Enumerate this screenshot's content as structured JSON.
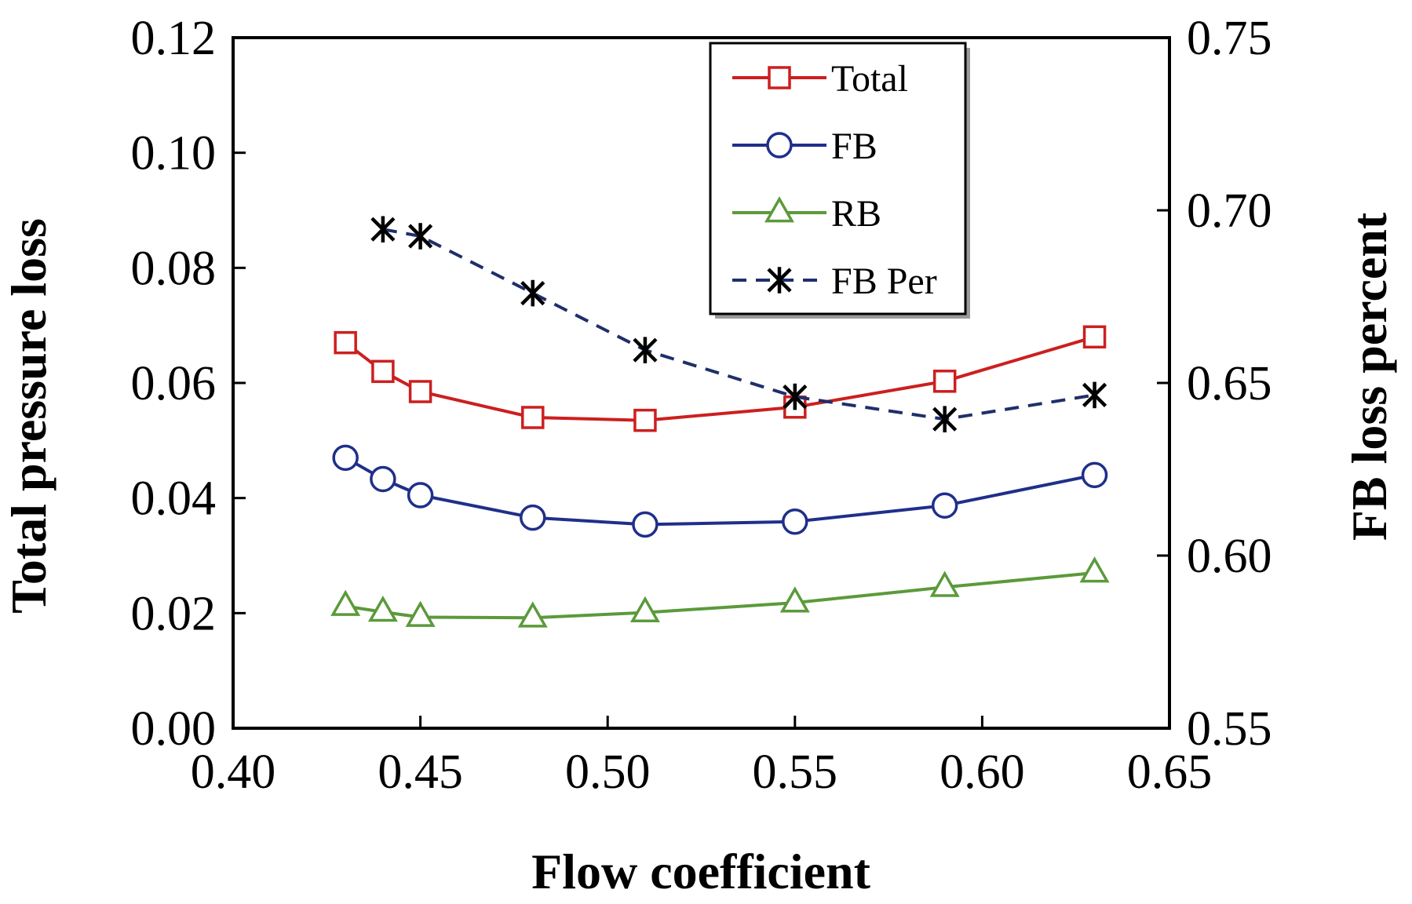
{
  "chart_data": {
    "type": "line",
    "title": "",
    "xlabel": "Flow coefficient",
    "ylabel": "Total pressure loss",
    "y2label": "FB loss percent",
    "xlim": [
      0.4,
      0.65
    ],
    "ylim": [
      0.0,
      0.12
    ],
    "y2lim": [
      0.55,
      0.75
    ],
    "x_ticks": [
      "0.40",
      "0.45",
      "0.50",
      "0.55",
      "0.60",
      "0.65"
    ],
    "x_tick_values": [
      0.4,
      0.45,
      0.5,
      0.55,
      0.6,
      0.65
    ],
    "y_ticks": [
      "0.00",
      "0.02",
      "0.04",
      "0.06",
      "0.08",
      "0.10",
      "0.12"
    ],
    "y_tick_values": [
      0.0,
      0.02,
      0.04,
      0.06,
      0.08,
      0.1,
      0.12
    ],
    "y2_ticks": [
      "0.55",
      "0.60",
      "0.65",
      "0.70",
      "0.75"
    ],
    "y2_tick_values": [
      0.55,
      0.6,
      0.65,
      0.7,
      0.75
    ],
    "grid": false,
    "legend_position": "top-right",
    "series": [
      {
        "name": "Total",
        "axis": "left",
        "color": "#cc1f1f",
        "marker": "square",
        "line": "solid",
        "x": [
          0.43,
          0.44,
          0.45,
          0.48,
          0.51,
          0.55,
          0.59,
          0.63
        ],
        "values": [
          0.067,
          0.062,
          0.0585,
          0.054,
          0.0535,
          0.0558,
          0.0603,
          0.068
        ]
      },
      {
        "name": "FB",
        "axis": "left",
        "color": "#1f2f8a",
        "marker": "circle",
        "line": "solid",
        "x": [
          0.43,
          0.44,
          0.45,
          0.48,
          0.51,
          0.55,
          0.59,
          0.63
        ],
        "values": [
          0.047,
          0.0433,
          0.0405,
          0.0366,
          0.0354,
          0.0359,
          0.0387,
          0.044
        ]
      },
      {
        "name": "RB",
        "axis": "left",
        "color": "#5b9a3a",
        "marker": "triangle",
        "line": "solid",
        "x": [
          0.43,
          0.44,
          0.45,
          0.48,
          0.51,
          0.55,
          0.59,
          0.63
        ],
        "values": [
          0.0212,
          0.0202,
          0.0193,
          0.0192,
          0.0201,
          0.0218,
          0.0245,
          0.027
        ]
      },
      {
        "name": "FB Per",
        "axis": "right",
        "color": "#1f2f6a",
        "marker_color": "#000000",
        "marker": "asterisk",
        "line": "dashed",
        "x": [
          0.44,
          0.45,
          0.48,
          0.51,
          0.55,
          0.59,
          0.63
        ],
        "values": [
          0.6945,
          0.6925,
          0.676,
          0.6595,
          0.646,
          0.6395,
          0.6465
        ]
      }
    ]
  }
}
